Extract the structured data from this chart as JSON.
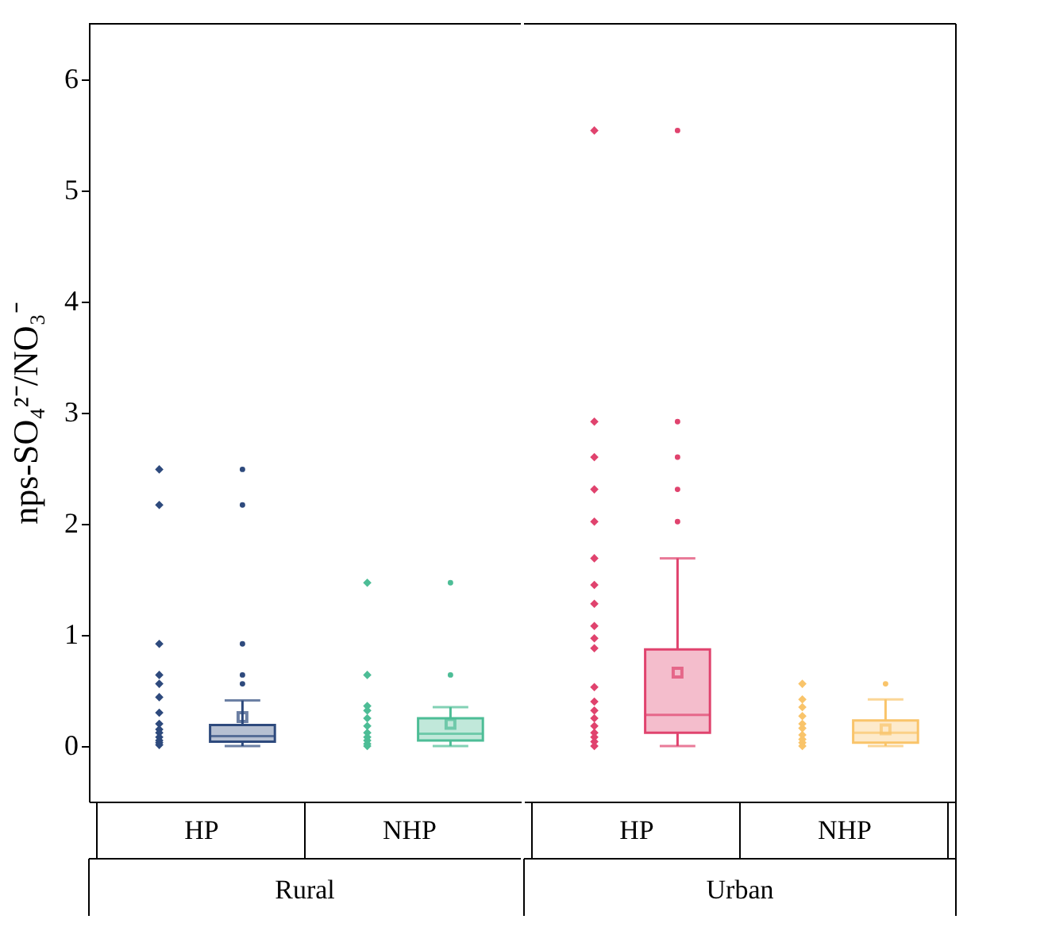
{
  "chart_data": [
    {
      "type": "box",
      "xlabel": "Rural",
      "ylabel": "nps-SO₄²⁻/NO₃⁻",
      "categories": [
        "HP",
        "NHP"
      ],
      "ylim": [
        -0.5,
        6.5
      ],
      "yticks": [
        0,
        1,
        2,
        3,
        4,
        5,
        6
      ],
      "marker": "diamond",
      "grid": false,
      "legend": false,
      "series": [
        {
          "color": "#2e4a7d",
          "boxes": [
            {
              "low": 0,
              "q1": 0.04,
              "median": 0.09,
              "q3": 0.19,
              "high": 0.41,
              "mean": 0.26,
              "outliers": [
                2.49,
                2.17,
                0.92,
                0.64,
                0.56
              ]
            },
            null
          ]
        },
        {
          "color": "#4dbd96",
          "boxes": [
            null,
            {
              "low": 0,
              "q1": 0.05,
              "median": 0.11,
              "q3": 0.25,
              "high": 0.35,
              "mean": 0.2,
              "outliers": [
                1.47,
                0.64
              ]
            }
          ]
        },
        {
          "type": "scatter",
          "color": "#2e4a7d",
          "x": [
            "HP",
            "HP",
            "HP",
            "HP",
            "HP",
            "HP",
            "HP",
            "HP",
            "HP",
            "HP",
            "HP",
            "HP",
            "HP",
            "HP"
          ],
          "values": [
            2.49,
            2.17,
            0.92,
            0.64,
            0.56,
            0.44,
            0.3,
            0.2,
            0.15,
            0.12,
            0.08,
            0.05,
            0.03,
            0.01
          ]
        },
        {
          "type": "scatter",
          "color": "#4dbd96",
          "x": [
            "NHP",
            "NHP",
            "NHP",
            "NHP",
            "NHP",
            "NHP",
            "NHP",
            "NHP",
            "NHP",
            "NHP",
            "NHP"
          ],
          "values": [
            1.47,
            0.64,
            0.36,
            0.32,
            0.25,
            0.18,
            0.12,
            0.08,
            0.05,
            0.02,
            0.0
          ]
        }
      ]
    },
    {
      "type": "box",
      "xlabel": "Urban",
      "categories": [
        "HP",
        "NHP"
      ],
      "tick_labels": "x",
      "ylim": [
        -0.5,
        6.5
      ],
      "yticks": [
        0,
        1,
        2,
        3,
        4,
        5,
        6
      ],
      "marker": "diamond",
      "grid": false,
      "legend": false,
      "series": [
        {
          "color": "#e0436e",
          "boxes": [
            {
              "low": 0,
              "q1": 0.12,
              "median": 0.28,
              "q3": 0.87,
              "high": 1.69,
              "mean": 0.66,
              "outliers": [
                5.54,
                2.92,
                2.6,
                2.31,
                2.02
              ]
            },
            null
          ]
        },
        {
          "color": "#f9c46a",
          "boxes": [
            null,
            {
              "low": 0,
              "q1": 0.03,
              "median": 0.12,
              "q3": 0.23,
              "high": 0.42,
              "mean": 0.15,
              "outliers": [
                0.56
              ]
            }
          ]
        },
        {
          "type": "scatter",
          "color": "#e0436e",
          "x": [
            "HP",
            "HP",
            "HP",
            "HP",
            "HP",
            "HP",
            "HP",
            "HP",
            "HP",
            "HP",
            "HP",
            "HP",
            "HP",
            "HP",
            "HP",
            "HP",
            "HP",
            "HP",
            "HP",
            "HP"
          ],
          "values": [
            5.54,
            2.92,
            2.6,
            2.31,
            2.02,
            1.69,
            1.45,
            1.28,
            1.08,
            0.97,
            0.88,
            0.53,
            0.4,
            0.32,
            0.25,
            0.18,
            0.12,
            0.08,
            0.04,
            0.0
          ]
        },
        {
          "type": "scatter",
          "color": "#f9c46a",
          "x": [
            "NHP",
            "NHP",
            "NHP",
            "NHP",
            "NHP",
            "NHP",
            "NHP",
            "NHP",
            "NHP",
            "NHP"
          ],
          "values": [
            0.56,
            0.42,
            0.35,
            0.27,
            0.2,
            0.16,
            0.1,
            0.06,
            0.03,
            0.0
          ]
        }
      ]
    }
  ]
}
